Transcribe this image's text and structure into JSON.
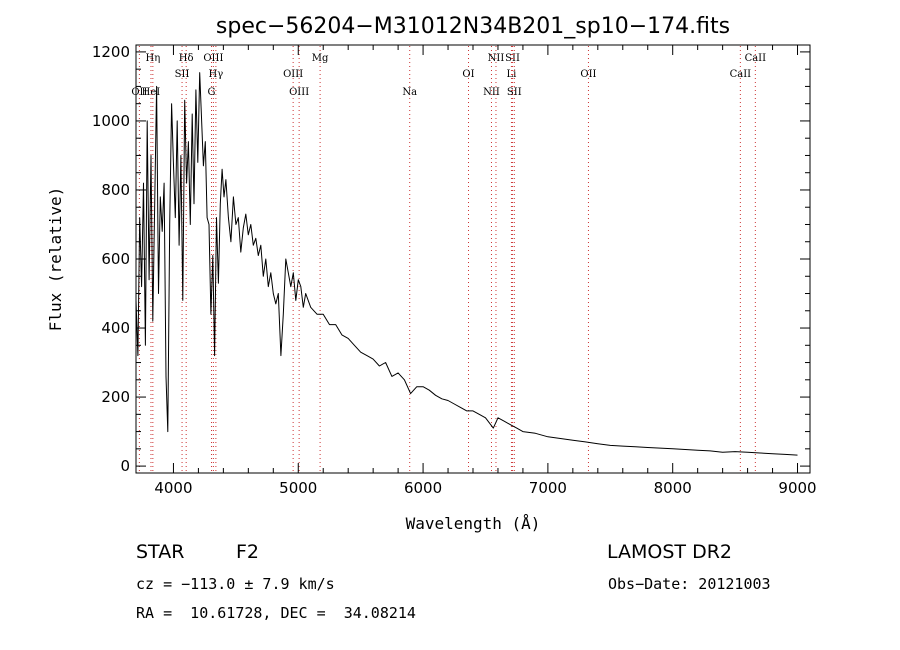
{
  "chart_data": {
    "type": "line",
    "title": "spec−56204−M31012N34B201_sp10−174.fits",
    "xlabel": "Wavelength (Å)",
    "ylabel": "Flux (relative)",
    "xlim": [
      3700,
      9100
    ],
    "ylim": [
      -20,
      1220
    ],
    "xticks": [
      4000,
      5000,
      6000,
      7000,
      8000,
      9000
    ],
    "yticks": [
      0,
      200,
      400,
      600,
      800,
      1000,
      1200
    ],
    "grid": false,
    "line_color": "#000000",
    "marker_color": "#cc3333",
    "series": [
      {
        "x": [
          3700,
          3715,
          3730,
          3745,
          3760,
          3775,
          3790,
          3805,
          3820,
          3835,
          3850,
          3865,
          3880,
          3895,
          3910,
          3925,
          3940,
          3955,
          3970,
          3985,
          4000,
          4015,
          4030,
          4045,
          4060,
          4075,
          4090,
          4105,
          4120,
          4135,
          4150,
          4165,
          4180,
          4195,
          4210,
          4225,
          4240,
          4255,
          4270,
          4285,
          4300,
          4315,
          4330,
          4345,
          4360,
          4375,
          4390,
          4405,
          4420,
          4440,
          4460,
          4480,
          4500,
          4520,
          4540,
          4560,
          4580,
          4600,
          4620,
          4640,
          4660,
          4680,
          4700,
          4720,
          4740,
          4760,
          4780,
          4800,
          4820,
          4840,
          4861,
          4880,
          4900,
          4920,
          4940,
          4960,
          4980,
          5000,
          5020,
          5040,
          5060,
          5080,
          5100,
          5150,
          5200,
          5250,
          5300,
          5350,
          5400,
          5450,
          5500,
          5550,
          5600,
          5650,
          5700,
          5750,
          5800,
          5850,
          5900,
          5950,
          6000,
          6050,
          6100,
          6150,
          6200,
          6250,
          6300,
          6350,
          6400,
          6450,
          6500,
          6563,
          6600,
          6650,
          6700,
          6750,
          6800,
          6900,
          7000,
          7100,
          7200,
          7300,
          7400,
          7500,
          7600,
          7700,
          7800,
          7900,
          8000,
          8100,
          8200,
          8300,
          8400,
          8500,
          8600,
          8700,
          8800,
          8900,
          9000
        ],
        "y": [
          480,
          320,
          720,
          520,
          820,
          350,
          1000,
          540,
          900,
          420,
          760,
          1100,
          500,
          780,
          680,
          820,
          260,
          100,
          700,
          1050,
          880,
          720,
          1000,
          640,
          900,
          480,
          1060,
          820,
          940,
          700,
          1020,
          760,
          1090,
          880,
          1140,
          1010,
          870,
          940,
          720,
          700,
          440,
          610,
          320,
          720,
          530,
          760,
          860,
          780,
          830,
          720,
          650,
          780,
          700,
          720,
          620,
          690,
          730,
          670,
          700,
          640,
          660,
          610,
          640,
          550,
          600,
          520,
          560,
          500,
          470,
          500,
          320,
          440,
          600,
          560,
          520,
          560,
          480,
          540,
          520,
          460,
          500,
          480,
          460,
          440,
          440,
          410,
          410,
          380,
          370,
          350,
          330,
          320,
          310,
          290,
          300,
          260,
          270,
          250,
          210,
          230,
          230,
          220,
          205,
          195,
          190,
          180,
          170,
          160,
          160,
          150,
          140,
          110,
          140,
          130,
          120,
          110,
          100,
          95,
          85,
          80,
          75,
          70,
          65,
          60,
          58,
          56,
          54,
          52,
          50,
          48,
          46,
          44,
          40,
          42,
          40,
          38,
          36,
          34,
          32
        ]
      }
    ],
    "line_markers": [
      {
        "label": "OII",
        "x": 3727,
        "row": 3
      },
      {
        "label": "HeI",
        "x": 3820,
        "row": 3
      },
      {
        "label": "Hη",
        "x": 3835,
        "row": 1
      },
      {
        "label": "SII",
        "x": 4069,
        "row": 2
      },
      {
        "label": "Hδ",
        "x": 4102,
        "row": 1
      },
      {
        "label": "OIII",
        "x": 4320,
        "row": 1
      },
      {
        "label": "Hγ",
        "x": 4340,
        "row": 2
      },
      {
        "label": "G",
        "x": 4305,
        "row": 3
      },
      {
        "label": "OIII",
        "x": 4959,
        "row": 2
      },
      {
        "label": "OIII",
        "x": 5007,
        "row": 3
      },
      {
        "label": "Mg",
        "x": 5175,
        "row": 1
      },
      {
        "label": "Na",
        "x": 5893,
        "row": 3
      },
      {
        "label": "OI",
        "x": 6364,
        "row": 2
      },
      {
        "label": "NII",
        "x": 6584,
        "row": 1
      },
      {
        "label": "SII",
        "x": 6717,
        "row": 1
      },
      {
        "label": "Li",
        "x": 6708,
        "row": 2
      },
      {
        "label": "NII",
        "x": 6548,
        "row": 3
      },
      {
        "label": "SII",
        "x": 6731,
        "row": 3
      },
      {
        "label": "OII",
        "x": 7325,
        "row": 2
      },
      {
        "label": "CaII",
        "x": 8662,
        "row": 1
      },
      {
        "label": "CaII",
        "x": 8542,
        "row": 2
      }
    ]
  },
  "info": {
    "object_type": "STAR",
    "subclass": "F2",
    "survey": "LAMOST DR2",
    "cz": "cz = −113.0 ± 7.9 km/s",
    "obs_date": "Obs−Date: 20121003",
    "coords": "RA =  10.61728, DEC =  34.08214"
  }
}
